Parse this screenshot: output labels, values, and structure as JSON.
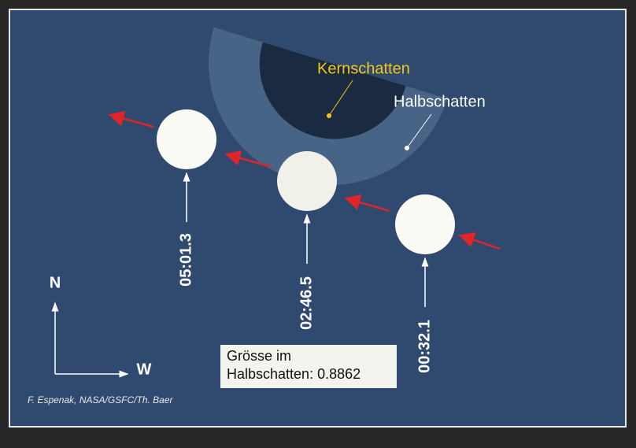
{
  "labels": {
    "umbra": "Kernschatten",
    "penumbra": "Halbschatten"
  },
  "moons": [
    {
      "time": "05:01.3"
    },
    {
      "time": "02:46.5"
    },
    {
      "time": "00:32.1"
    }
  ],
  "magnitude_box": {
    "lines": [
      "Grösse im",
      "Halbschatten: 0.8862"
    ]
  },
  "compass": {
    "north": "N",
    "west": "W"
  },
  "credit": "F. Espenak, NASA/GSFC/Th. Baer"
}
